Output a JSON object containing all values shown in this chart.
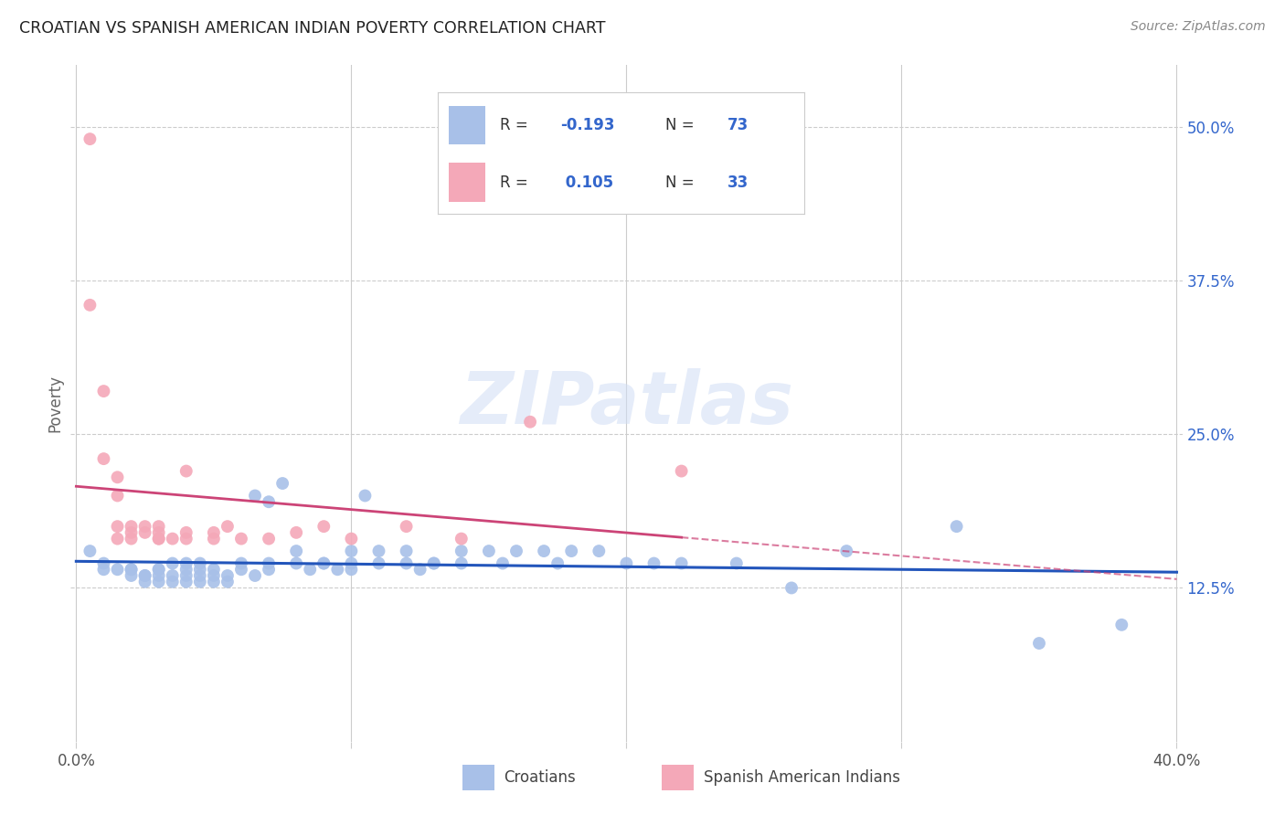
{
  "title": "CROATIAN VS SPANISH AMERICAN INDIAN POVERTY CORRELATION CHART",
  "source": "Source: ZipAtlas.com",
  "ylabel": "Poverty",
  "watermark": "ZIPatlas",
  "ytick_labels": [
    "50.0%",
    "37.5%",
    "25.0%",
    "12.5%"
  ],
  "ytick_values": [
    0.5,
    0.375,
    0.25,
    0.125
  ],
  "xmin": 0.0,
  "xmax": 0.4,
  "ymin": 0.0,
  "ymax": 0.55,
  "legend_R1": "-0.193",
  "legend_N1": "73",
  "legend_R2": "0.105",
  "legend_N2": "33",
  "blue_color": "#a8c0e8",
  "pink_color": "#f4a8b8",
  "blue_line_color": "#2255bb",
  "pink_line_color": "#cc4477",
  "title_color": "#222222",
  "axis_label_color": "#3366cc",
  "grid_color": "#cccccc",
  "grid_style": "--",
  "croatian_scatter_x": [
    0.005,
    0.01,
    0.01,
    0.015,
    0.02,
    0.02,
    0.02,
    0.025,
    0.025,
    0.025,
    0.03,
    0.03,
    0.03,
    0.03,
    0.035,
    0.035,
    0.035,
    0.04,
    0.04,
    0.04,
    0.04,
    0.045,
    0.045,
    0.045,
    0.045,
    0.05,
    0.05,
    0.05,
    0.055,
    0.055,
    0.06,
    0.06,
    0.065,
    0.065,
    0.07,
    0.07,
    0.07,
    0.075,
    0.08,
    0.08,
    0.085,
    0.09,
    0.09,
    0.095,
    0.1,
    0.1,
    0.1,
    0.105,
    0.11,
    0.11,
    0.12,
    0.12,
    0.125,
    0.13,
    0.13,
    0.14,
    0.14,
    0.15,
    0.155,
    0.16,
    0.17,
    0.175,
    0.18,
    0.19,
    0.2,
    0.21,
    0.22,
    0.24,
    0.26,
    0.28,
    0.32,
    0.35,
    0.38
  ],
  "croatian_scatter_y": [
    0.155,
    0.145,
    0.14,
    0.14,
    0.14,
    0.135,
    0.14,
    0.135,
    0.13,
    0.135,
    0.14,
    0.135,
    0.13,
    0.14,
    0.135,
    0.13,
    0.145,
    0.135,
    0.13,
    0.14,
    0.145,
    0.13,
    0.135,
    0.14,
    0.145,
    0.135,
    0.13,
    0.14,
    0.135,
    0.13,
    0.14,
    0.145,
    0.135,
    0.2,
    0.14,
    0.145,
    0.195,
    0.21,
    0.145,
    0.155,
    0.14,
    0.145,
    0.145,
    0.14,
    0.145,
    0.155,
    0.14,
    0.2,
    0.155,
    0.145,
    0.145,
    0.155,
    0.14,
    0.145,
    0.145,
    0.155,
    0.145,
    0.155,
    0.145,
    0.155,
    0.155,
    0.145,
    0.155,
    0.155,
    0.145,
    0.145,
    0.145,
    0.145,
    0.125,
    0.155,
    0.175,
    0.08,
    0.095
  ],
  "spanish_ai_scatter_x": [
    0.005,
    0.005,
    0.01,
    0.01,
    0.015,
    0.015,
    0.015,
    0.015,
    0.02,
    0.02,
    0.02,
    0.025,
    0.025,
    0.03,
    0.03,
    0.03,
    0.03,
    0.035,
    0.04,
    0.04,
    0.04,
    0.05,
    0.05,
    0.055,
    0.06,
    0.07,
    0.08,
    0.09,
    0.1,
    0.12,
    0.14,
    0.165,
    0.22
  ],
  "spanish_ai_scatter_y": [
    0.49,
    0.355,
    0.285,
    0.23,
    0.215,
    0.175,
    0.165,
    0.2,
    0.165,
    0.17,
    0.175,
    0.17,
    0.175,
    0.165,
    0.17,
    0.175,
    0.165,
    0.165,
    0.165,
    0.17,
    0.22,
    0.165,
    0.17,
    0.175,
    0.165,
    0.165,
    0.17,
    0.175,
    0.165,
    0.175,
    0.165,
    0.26,
    0.22
  ]
}
